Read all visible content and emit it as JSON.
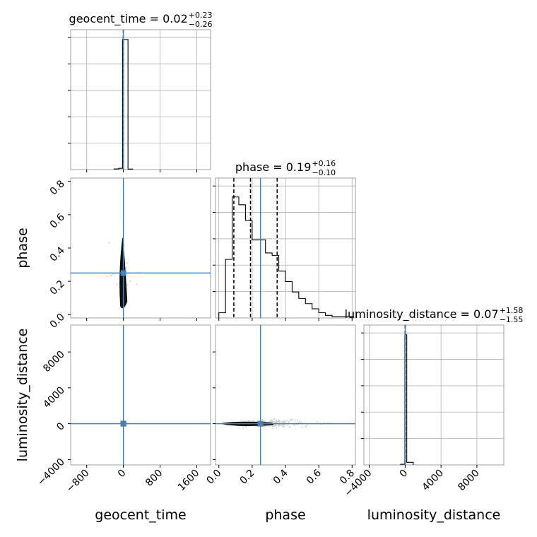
{
  "chart_data": {
    "type": "corner",
    "parameters": [
      "geocent_time",
      "phase",
      "luminosity_distance"
    ],
    "truths": {
      "geocent_time": 0,
      "phase": 0.25,
      "luminosity_distance": 0
    },
    "truth_color": "#4682b4",
    "line_color": "#000000",
    "grid": true,
    "titles": [
      {
        "param": "geocent_time",
        "main": "geocent_time = 0.02",
        "upper": "+0.23",
        "lower": "−0.26"
      },
      {
        "param": "phase",
        "main": "phase = 0.19",
        "upper": "+0.16",
        "lower": "−0.10"
      },
      {
        "param": "luminosity_distance",
        "main": "luminosity_distance = 0.07",
        "upper": "+1.58",
        "lower": "−1.55"
      }
    ],
    "axes": {
      "geocent_time": {
        "range": [
          -1150,
          1900
        ],
        "ticks": [
          -800,
          0,
          800,
          1600
        ],
        "tick_labels": [
          "−800",
          "0",
          "800",
          "1600"
        ]
      },
      "phase": {
        "range": [
          -0.02,
          0.82
        ],
        "ticks": [
          0.0,
          0.2,
          0.4,
          0.6,
          0.8
        ],
        "tick_labels": [
          "0.0",
          "0.2",
          "0.4",
          "0.6",
          "0.8"
        ]
      },
      "luminosity_distance": {
        "range": [
          -4600,
          11000
        ],
        "ticks": [
          -4000,
          0,
          4000,
          8000
        ],
        "tick_labels": [
          "−4000",
          "0",
          "4000",
          "8000"
        ]
      }
    },
    "histograms": {
      "geocent_time": {
        "bins": [
          [
            -200,
            -100,
            0.005
          ],
          [
            -100,
            -20,
            0.01
          ],
          [
            -20,
            100,
            1.0
          ],
          [
            100,
            200,
            0.004
          ]
        ],
        "quantiles": [
          -0.24,
          0.02,
          0.25
        ]
      },
      "phase": {
        "bin_edges": [
          0.0,
          0.04,
          0.08,
          0.12,
          0.16,
          0.2,
          0.24,
          0.28,
          0.32,
          0.36,
          0.4,
          0.44,
          0.48,
          0.52,
          0.56,
          0.6,
          0.64,
          0.68,
          0.72,
          0.76,
          0.8
        ],
        "counts": [
          0.04,
          0.45,
          0.93,
          0.87,
          0.75,
          0.6,
          0.6,
          0.5,
          0.48,
          0.36,
          0.28,
          0.2,
          0.15,
          0.11,
          0.07,
          0.04,
          0.02,
          0.01,
          0.01,
          0.01
        ],
        "quantiles": [
          0.09,
          0.19,
          0.35
        ]
      },
      "luminosity_distance": {
        "bins": [
          [
            -500,
            -40,
            0.005
          ],
          [
            -40,
            180,
            1.0
          ],
          [
            180,
            900,
            0.02
          ]
        ],
        "quantiles": [
          -1.48,
          0.07,
          1.65
        ]
      }
    },
    "xlabels": [
      "geocent_time",
      "phase",
      "luminosity_distance"
    ],
    "ylabels": [
      "",
      "phase",
      "luminosity_distance"
    ]
  }
}
